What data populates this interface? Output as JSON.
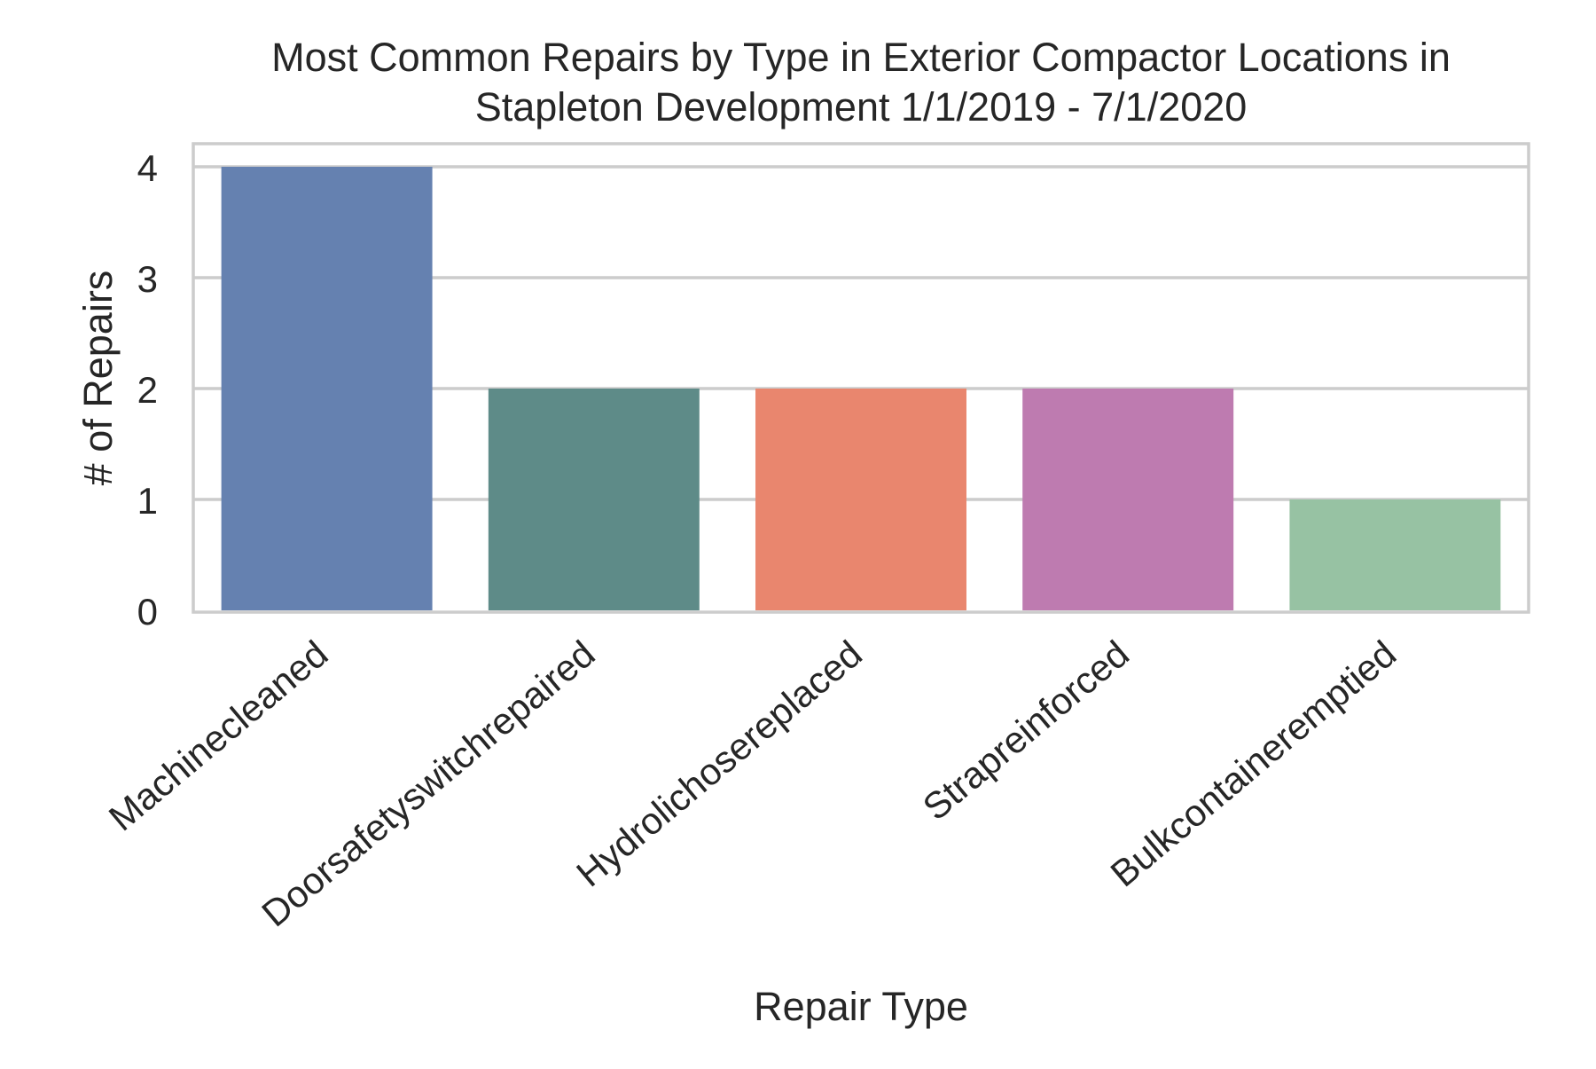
{
  "chart_data": {
    "type": "bar",
    "title_lines": [
      "Most Common Repairs by Type in Exterior Compactor Locations in",
      "Stapleton Development 1/1/2019 - 7/1/2020"
    ],
    "xlabel": "Repair Type",
    "ylabel": "# of Repairs",
    "categories": [
      "Machinecleaned",
      "Doorsafetyswitchrepaired",
      "Hydrolichosereplaced",
      "Strapreinforced",
      "Bulkcontaineremptied"
    ],
    "values": [
      4,
      2,
      2,
      2,
      1
    ],
    "colors": [
      "#6581b0",
      "#5e8b88",
      "#e9866e",
      "#be7bb0",
      "#97c2a3"
    ],
    "ylim": [
      0,
      4.2
    ],
    "yticks": [
      "0",
      "1",
      "2",
      "3",
      "4"
    ],
    "grid": true,
    "legend": false
  }
}
